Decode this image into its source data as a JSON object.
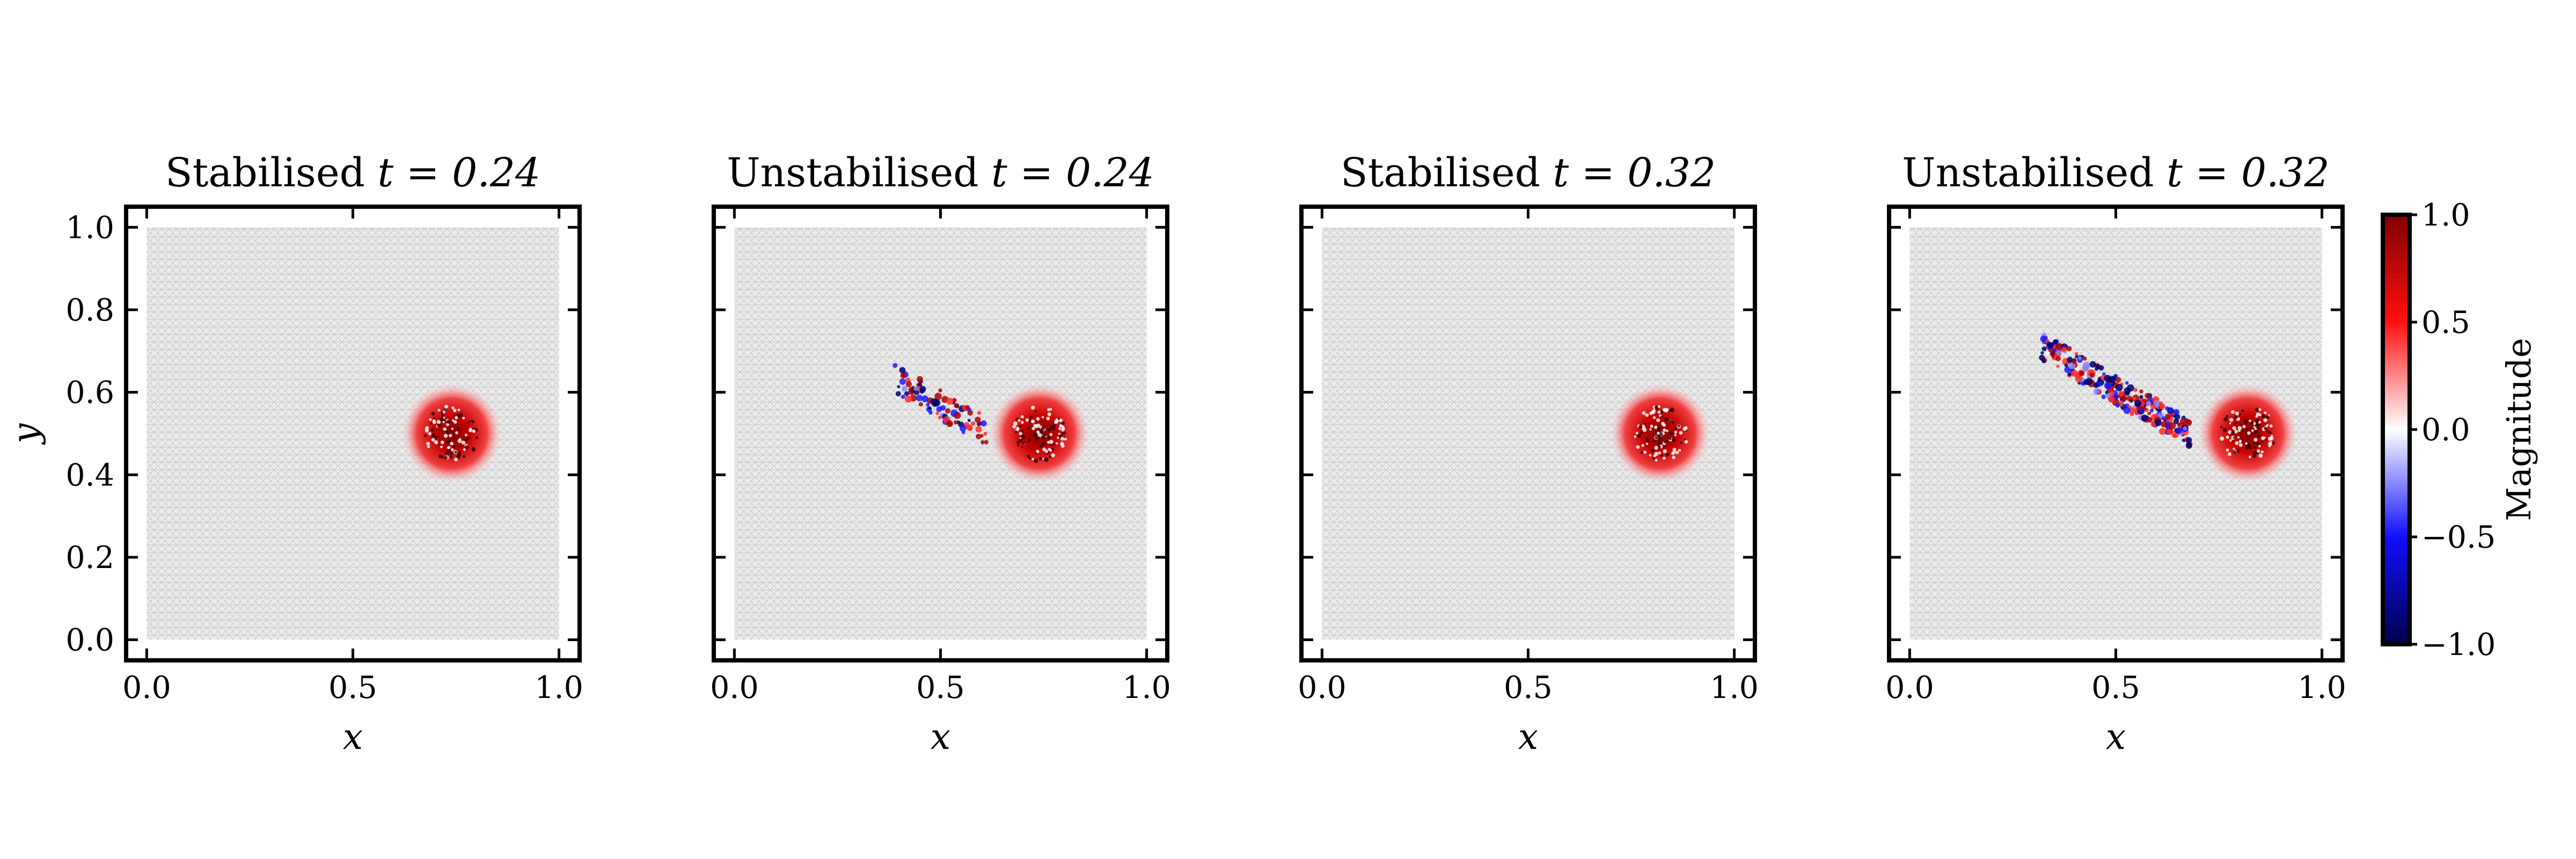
{
  "colorbar": {
    "label": "Magnitude",
    "range": [
      -1.0,
      1.0
    ],
    "ticks": [
      "1.0",
      "0.5",
      "0.0",
      "−0.5",
      "−1.0"
    ],
    "tick_values": [
      1.0,
      0.5,
      0.0,
      -0.5,
      -1.0
    ],
    "colormap": "seismic",
    "colors": {
      "low": "#00004c",
      "neutral": "#ffffff",
      "high": "#800000",
      "background_mesh": "#bdbdbd"
    }
  },
  "chart_data": [
    {
      "type": "scatter",
      "title_text": "Stabilised",
      "title_math": "t = 0.24",
      "xlabel": "x",
      "ylabel": "y",
      "xlim": [
        -0.05,
        1.05
      ],
      "ylim": [
        -0.05,
        1.05
      ],
      "xticks": [
        "0.0",
        "0.5",
        "1.0"
      ],
      "yticks": [
        "0.0",
        "0.2",
        "0.4",
        "0.6",
        "0.8",
        "1.0"
      ],
      "blob_center": [
        0.74,
        0.5
      ],
      "blob_radius": 0.09,
      "noise_region": null
    },
    {
      "type": "scatter",
      "title_text": "Unstabilised",
      "title_math": "t = 0.24",
      "xlabel": "x",
      "ylabel": "",
      "xlim": [
        -0.05,
        1.05
      ],
      "ylim": [
        -0.05,
        1.05
      ],
      "xticks": [
        "0.0",
        "0.5",
        "1.0"
      ],
      "yticks": [],
      "blob_center": [
        0.74,
        0.5
      ],
      "blob_radius": 0.09,
      "noise_region": {
        "x": [
          0.38,
          0.62
        ],
        "y": [
          0.5,
          0.64
        ]
      }
    },
    {
      "type": "scatter",
      "title_text": "Stabilised",
      "title_math": "t = 0.32",
      "xlabel": "x",
      "ylabel": "",
      "xlim": [
        -0.05,
        1.05
      ],
      "ylim": [
        -0.05,
        1.05
      ],
      "xticks": [
        "0.0",
        "0.5",
        "1.0"
      ],
      "yticks": [],
      "blob_center": [
        0.82,
        0.5
      ],
      "blob_radius": 0.09,
      "noise_region": null
    },
    {
      "type": "scatter",
      "title_text": "Unstabilised",
      "title_math": "t = 0.32",
      "xlabel": "x",
      "ylabel": "",
      "xlim": [
        -0.05,
        1.05
      ],
      "ylim": [
        -0.05,
        1.05
      ],
      "xticks": [
        "0.0",
        "0.5",
        "1.0"
      ],
      "yticks": [],
      "blob_center": [
        0.82,
        0.5
      ],
      "blob_radius": 0.09,
      "noise_region": {
        "x": [
          0.32,
          0.68
        ],
        "y": [
          0.5,
          0.71
        ]
      }
    }
  ]
}
